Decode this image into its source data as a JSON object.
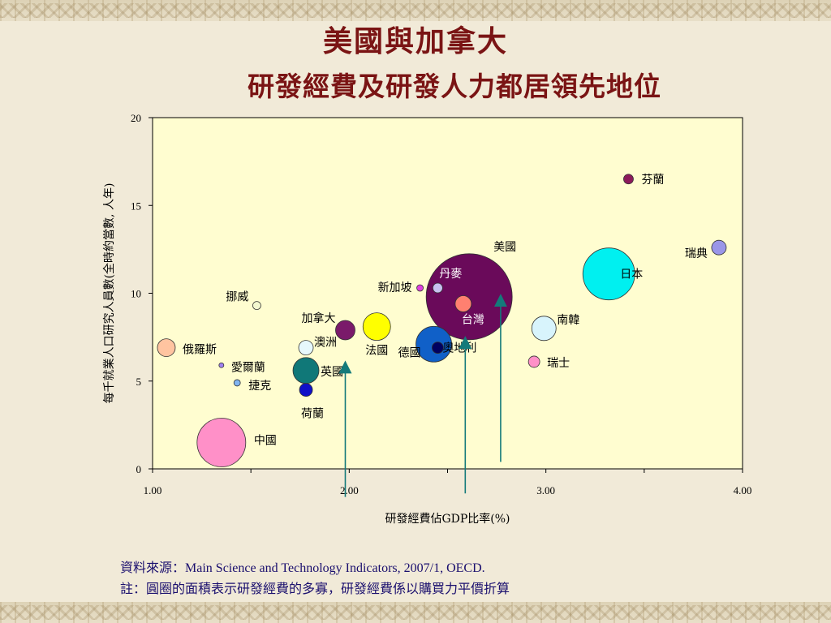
{
  "slide": {
    "title": "美國與加拿大",
    "subtitle": "研發經費及研發人力都居領先地位"
  },
  "footnote": {
    "source_label": "資料來源：",
    "source_text": "Main Science and Technology Indicators, 2007/1, OECD.",
    "note": "註：圓圈的面積表示研發經費的多寡，研發經費係以購買力平價折算"
  },
  "colors": {
    "title": "#7a1414",
    "plot_bg": "#fffdd0",
    "arrow": "#147a7a",
    "footnote": "#1a0f6e"
  },
  "chart_data": {
    "type": "bubble",
    "title": "",
    "xlabel": "研發經費佔GDP比率(%)",
    "ylabel": "每千就業人口研究人員數(全時約當數, 人年)",
    "xlim": [
      1.0,
      4.0
    ],
    "ylim": [
      0,
      20
    ],
    "xticks": [
      "1.00",
      "2.00",
      "3.00",
      "4.00"
    ],
    "yticks": [
      "0",
      "5",
      "10",
      "15",
      "20"
    ],
    "grid": false,
    "legend": "none",
    "series": [
      {
        "label": "芬蘭",
        "x": 3.42,
        "y": 16.5,
        "size": 6,
        "color": "#8b1a5a"
      },
      {
        "label": "瑞典",
        "x": 3.88,
        "y": 12.6,
        "size": 9,
        "color": "#9a96e8"
      },
      {
        "label": "日本",
        "x": 3.32,
        "y": 11.1,
        "size": 32,
        "color": "#00f0f0"
      },
      {
        "label": "美國",
        "x": 2.61,
        "y": 9.8,
        "size": 53,
        "color": "#6a0a5a"
      },
      {
        "label": "丹麥",
        "x": 2.45,
        "y": 10.3,
        "size": 6,
        "color": "#c8c0f0"
      },
      {
        "label": "新加坡",
        "x": 2.36,
        "y": 10.3,
        "size": 4,
        "color": "#e040e0"
      },
      {
        "label": "台灣",
        "x": 2.58,
        "y": 9.4,
        "size": 10,
        "color": "#ff8070"
      },
      {
        "label": "南韓",
        "x": 2.99,
        "y": 8.0,
        "size": 15,
        "color": "#d8f4fc"
      },
      {
        "label": "瑞士",
        "x": 2.94,
        "y": 6.1,
        "size": 7,
        "color": "#ff90c8"
      },
      {
        "label": "奧地利",
        "x": 2.45,
        "y": 6.9,
        "size": 7,
        "color": "#000060"
      },
      {
        "label": "德國",
        "x": 2.43,
        "y": 7.1,
        "size": 22,
        "color": "#1060c8"
      },
      {
        "label": "法國",
        "x": 2.14,
        "y": 8.1,
        "size": 17,
        "color": "#ffff00"
      },
      {
        "label": "加拿大",
        "x": 1.98,
        "y": 7.9,
        "size": 12,
        "color": "#7a1a6a"
      },
      {
        "label": "澳洲",
        "x": 1.78,
        "y": 6.9,
        "size": 9,
        "color": "#e6f8fc"
      },
      {
        "label": "英國",
        "x": 1.78,
        "y": 5.6,
        "size": 16,
        "color": "#107878"
      },
      {
        "label": "荷蘭",
        "x": 1.78,
        "y": 4.5,
        "size": 8,
        "color": "#1010c8"
      },
      {
        "label": "挪威",
        "x": 1.53,
        "y": 9.3,
        "size": 5,
        "color": "#f4f8d0"
      },
      {
        "label": "俄羅斯",
        "x": 1.07,
        "y": 6.9,
        "size": 11,
        "color": "#ffc4a0"
      },
      {
        "label": "愛爾蘭",
        "x": 1.35,
        "y": 5.9,
        "size": 3,
        "color": "#a080f0"
      },
      {
        "label": "捷克",
        "x": 1.43,
        "y": 4.9,
        "size": 4,
        "color": "#80b4f0"
      },
      {
        "label": "中國",
        "x": 1.35,
        "y": 1.5,
        "size": 30,
        "color": "#ff90c8"
      }
    ],
    "arrows": [
      {
        "target": "加拿大",
        "x": 1.98,
        "y_from": -1.6,
        "y_to": 5.8
      },
      {
        "target": "德國",
        "x": 2.59,
        "y_from": -1.4,
        "y_to": 7.2
      },
      {
        "target": "美國",
        "x": 2.77,
        "y_from": 0.4,
        "y_to": 9.6
      }
    ]
  }
}
